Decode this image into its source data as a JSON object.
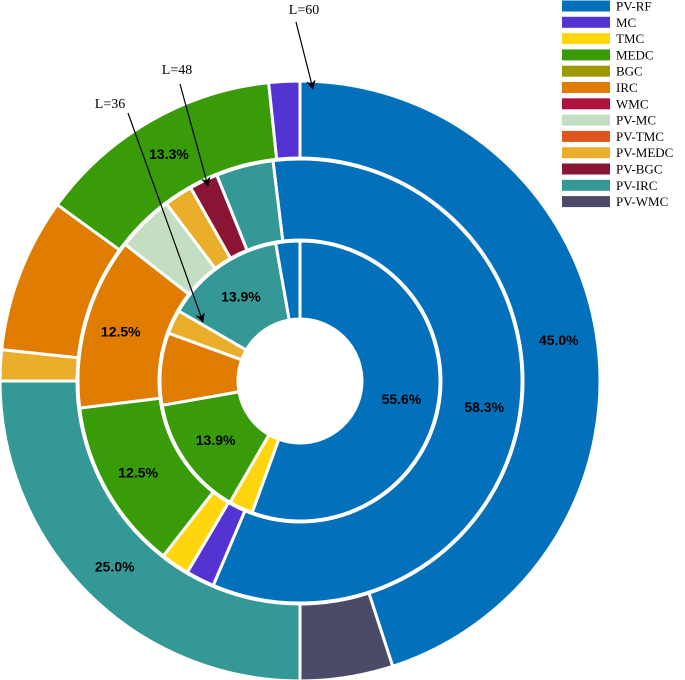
{
  "chart_data": {
    "type": "pie",
    "subtype": "nested-donut",
    "legend_position": "top-right",
    "categories": [
      "PV-RF",
      "MC",
      "TMC",
      "MEDC",
      "BGC",
      "IRC",
      "WMC",
      "PV-MC",
      "PV-TMC",
      "PV-MEDC",
      "PV-BGC",
      "PV-IRC",
      "PV-WMC"
    ],
    "colors": {
      "PV-RF": "#0270BA",
      "MC": "#5433D3",
      "TMC": "#FFD60E",
      "MEDC": "#3A9B09",
      "BGC": "#9C9A00",
      "IRC": "#E07C00",
      "WMC": "#B0123E",
      "PV-MC": "#C4DEC4",
      "PV-TMC": "#E0541E",
      "PV-MEDC": "#EBAE2A",
      "PV-BGC": "#8A1434",
      "PV-IRC": "#349996",
      "PV-WMC": "#4B4B68"
    },
    "series": [
      {
        "name": "L=36",
        "ring": "inner",
        "total": 36,
        "slices": [
          {
            "category": "PV-RF",
            "count": 20,
            "label": "55.6%"
          },
          {
            "category": "TMC",
            "count": 1,
            "label": ""
          },
          {
            "category": "MEDC",
            "count": 5,
            "label": "13.9%"
          },
          {
            "category": "IRC",
            "count": 3,
            "label": ""
          },
          {
            "category": "PV-MEDC",
            "count": 1,
            "label": ""
          },
          {
            "category": "PV-IRC",
            "count": 5,
            "label": "13.9%"
          },
          {
            "category": "PV-RF",
            "count": 1,
            "label": ""
          }
        ]
      },
      {
        "name": "L=48",
        "ring": "middle",
        "total": 48,
        "slices": [
          {
            "category": "PV-RF",
            "count": 28,
            "label": "58.3%"
          },
          {
            "category": "MC",
            "count": 1,
            "label": ""
          },
          {
            "category": "TMC",
            "count": 1,
            "label": ""
          },
          {
            "category": "MEDC",
            "count": 6,
            "label": "12.5%"
          },
          {
            "category": "IRC",
            "count": 6,
            "label": "12.5%"
          },
          {
            "category": "PV-MC",
            "count": 2,
            "label": ""
          },
          {
            "category": "PV-MEDC",
            "count": 1,
            "label": ""
          },
          {
            "category": "PV-BGC",
            "count": 1,
            "label": ""
          },
          {
            "category": "PV-IRC",
            "count": 2,
            "label": ""
          }
        ]
      },
      {
        "name": "L=60",
        "ring": "outer",
        "total": 60,
        "slices": [
          {
            "category": "PV-RF",
            "count": 27,
            "label": "45.0%"
          },
          {
            "category": "PV-WMC",
            "count": 3,
            "label": ""
          },
          {
            "category": "PV-IRC",
            "count": 15,
            "label": "25.0%"
          },
          {
            "category": "PV-MEDC",
            "count": 1,
            "label": ""
          },
          {
            "category": "IRC",
            "count": 5,
            "label": ""
          },
          {
            "category": "MEDC",
            "count": 8,
            "label": "13.3%"
          },
          {
            "category": "MC",
            "count": 1,
            "label": ""
          }
        ]
      }
    ]
  }
}
